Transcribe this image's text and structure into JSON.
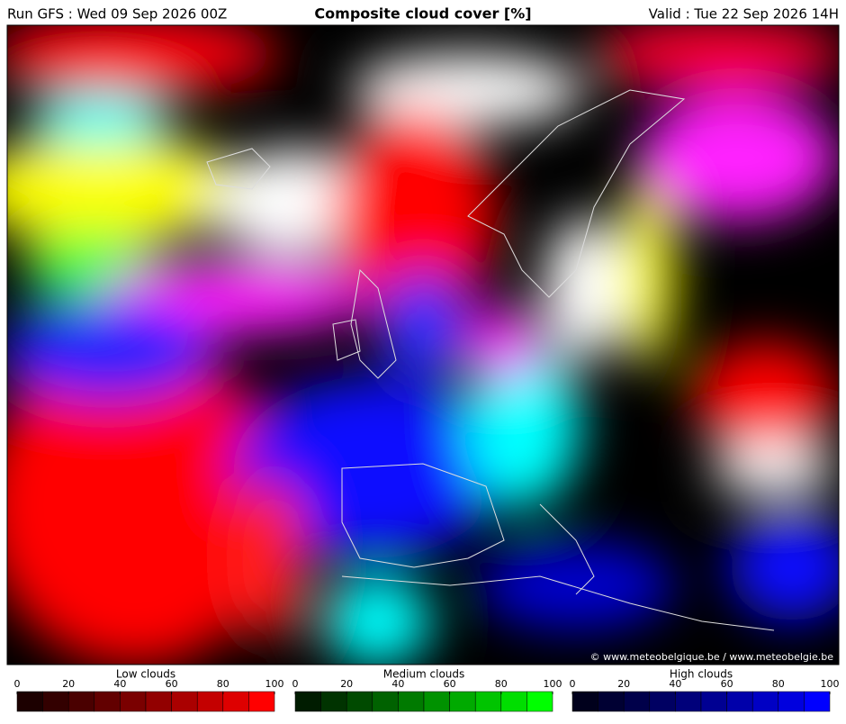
{
  "header": {
    "run": "Run GFS : Wed 09 Sep 2026 00Z",
    "title": "Composite cloud cover [%]",
    "valid": "Valid : Tue 22 Sep 2026 14H"
  },
  "copyright": "© www.meteobelgique.be / www.meteobelgie.be",
  "legends": [
    {
      "label": "Low clouds",
      "ticks": [
        0,
        20,
        40,
        60,
        80,
        100
      ],
      "colors": [
        "#1c0000",
        "#330000",
        "#4a0000",
        "#620000",
        "#7a0000",
        "#920000",
        "#aa0000",
        "#c40000",
        "#de0000",
        "#ff0000"
      ]
    },
    {
      "label": "Medium clouds",
      "ticks": [
        0,
        20,
        40,
        60,
        80,
        100
      ],
      "colors": [
        "#001c00",
        "#003300",
        "#004a00",
        "#006200",
        "#007a00",
        "#009200",
        "#00aa00",
        "#00c400",
        "#00de00",
        "#00ff00"
      ]
    },
    {
      "label": "High clouds",
      "ticks": [
        0,
        20,
        40,
        60,
        80,
        100
      ],
      "colors": [
        "#00001c",
        "#000033",
        "#00004a",
        "#000062",
        "#00007a",
        "#000092",
        "#0000aa",
        "#0000c4",
        "#0000de",
        "#0000ff"
      ]
    }
  ]
}
